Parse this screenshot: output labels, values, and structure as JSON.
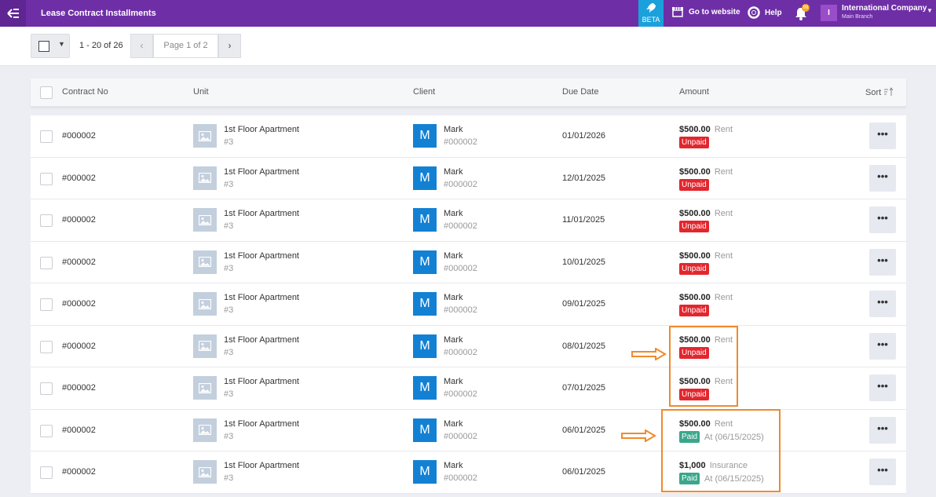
{
  "app": {
    "title": "Lease Contract Installments",
    "beta_label": "BETA",
    "goto_website": "Go to website",
    "help": "Help",
    "notification_count": "99",
    "company_initial": "I",
    "company_name": "International Company",
    "company_branch": "Main Branch"
  },
  "pager": {
    "range": "1 - 20 of 26",
    "page_label": "Page 1 of 2"
  },
  "table": {
    "headers": {
      "contract_no": "Contract No",
      "unit": "Unit",
      "client": "Client",
      "due_date": "Due Date",
      "amount": "Amount",
      "sort": "Sort"
    },
    "rows": [
      {
        "contract_no": "#000002",
        "unit": "1st Floor Apartment",
        "unit_sub": "#3",
        "client_initial": "M",
        "client": "Mark",
        "client_sub": "#000002",
        "due": "01/01/2026",
        "amount": "$500.00",
        "type": "Rent",
        "status": "Unpaid",
        "paid_at": ""
      },
      {
        "contract_no": "#000002",
        "unit": "1st Floor Apartment",
        "unit_sub": "#3",
        "client_initial": "M",
        "client": "Mark",
        "client_sub": "#000002",
        "due": "12/01/2025",
        "amount": "$500.00",
        "type": "Rent",
        "status": "Unpaid",
        "paid_at": ""
      },
      {
        "contract_no": "#000002",
        "unit": "1st Floor Apartment",
        "unit_sub": "#3",
        "client_initial": "M",
        "client": "Mark",
        "client_sub": "#000002",
        "due": "11/01/2025",
        "amount": "$500.00",
        "type": "Rent",
        "status": "Unpaid",
        "paid_at": ""
      },
      {
        "contract_no": "#000002",
        "unit": "1st Floor Apartment",
        "unit_sub": "#3",
        "client_initial": "M",
        "client": "Mark",
        "client_sub": "#000002",
        "due": "10/01/2025",
        "amount": "$500.00",
        "type": "Rent",
        "status": "Unpaid",
        "paid_at": ""
      },
      {
        "contract_no": "#000002",
        "unit": "1st Floor Apartment",
        "unit_sub": "#3",
        "client_initial": "M",
        "client": "Mark",
        "client_sub": "#000002",
        "due": "09/01/2025",
        "amount": "$500.00",
        "type": "Rent",
        "status": "Unpaid",
        "paid_at": ""
      },
      {
        "contract_no": "#000002",
        "unit": "1st Floor Apartment",
        "unit_sub": "#3",
        "client_initial": "M",
        "client": "Mark",
        "client_sub": "#000002",
        "due": "08/01/2025",
        "amount": "$500.00",
        "type": "Rent",
        "status": "Unpaid",
        "paid_at": ""
      },
      {
        "contract_no": "#000002",
        "unit": "1st Floor Apartment",
        "unit_sub": "#3",
        "client_initial": "M",
        "client": "Mark",
        "client_sub": "#000002",
        "due": "07/01/2025",
        "amount": "$500.00",
        "type": "Rent",
        "status": "Unpaid",
        "paid_at": ""
      },
      {
        "contract_no": "#000002",
        "unit": "1st Floor Apartment",
        "unit_sub": "#3",
        "client_initial": "M",
        "client": "Mark",
        "client_sub": "#000002",
        "due": "06/01/2025",
        "amount": "$500.00",
        "type": "Rent",
        "status": "Paid",
        "paid_at": "At (06/15/2025)"
      },
      {
        "contract_no": "#000002",
        "unit": "1st Floor Apartment",
        "unit_sub": "#3",
        "client_initial": "M",
        "client": "Mark",
        "client_sub": "#000002",
        "due": "06/01/2025",
        "amount": "$1,000",
        "type": "Insurance",
        "status": "Paid",
        "paid_at": "At (06/15/2025)"
      }
    ]
  },
  "colors": {
    "topbar": "#6e2fa6",
    "beta": "#1aa1dc",
    "unpaid": "#e3262e",
    "paid": "#3aa78c",
    "highlight": "#f08a2c",
    "client_avatar": "#1381d3"
  }
}
